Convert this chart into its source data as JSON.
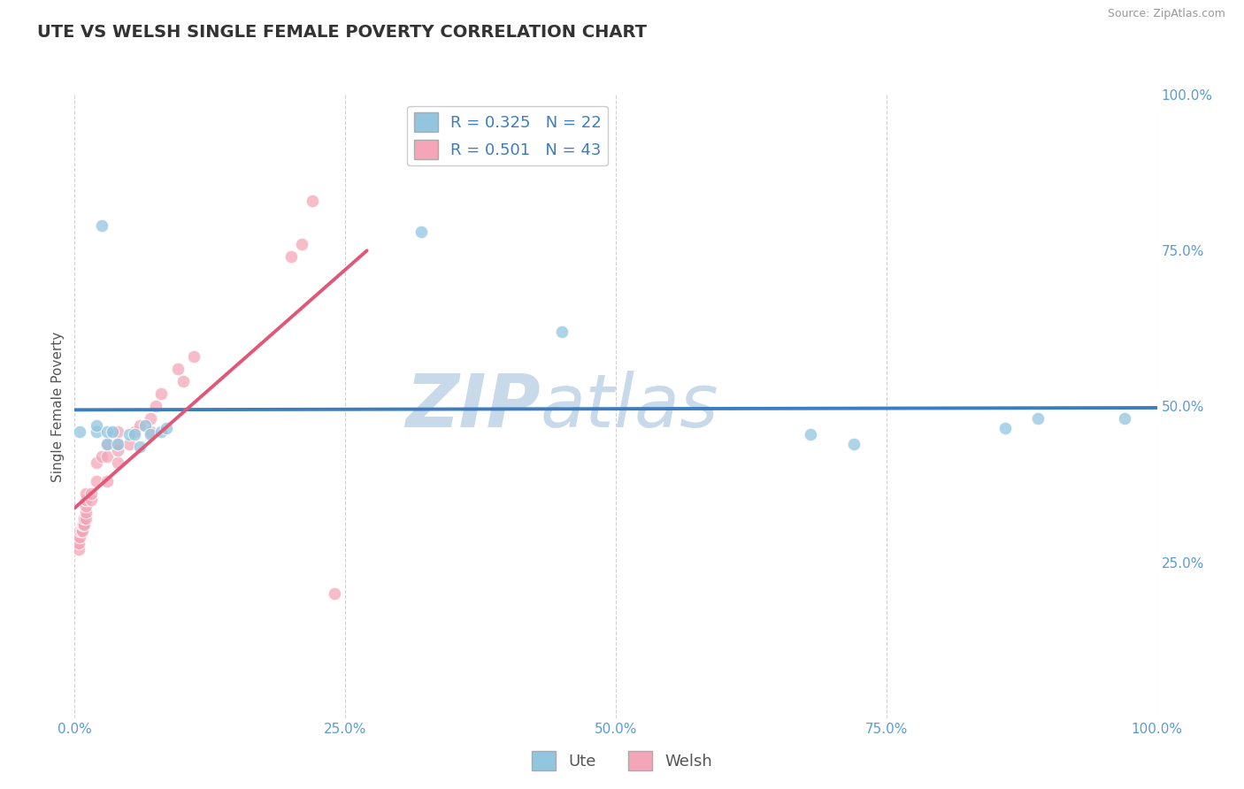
{
  "title": "UTE VS WELSH SINGLE FEMALE POVERTY CORRELATION CHART",
  "source": "Source: ZipAtlas.com",
  "ylabel": "Single Female Poverty",
  "ute_R": "R = 0.325",
  "ute_N": "N = 22",
  "welsh_R": "R = 0.501",
  "welsh_N": "N = 43",
  "ute_color": "#92c5de",
  "welsh_color": "#f4a6b8",
  "ute_line_color": "#3d7dbf",
  "welsh_line_color": "#e05878",
  "background_color": "#ffffff",
  "grid_color": "#cccccc",
  "watermark_zip": "ZIP",
  "watermark_atlas": "atlas",
  "watermark_color": "#c8daea",
  "ute_x": [
    0.005,
    0.02,
    0.02,
    0.025,
    0.03,
    0.03,
    0.035,
    0.04,
    0.05,
    0.055,
    0.06,
    0.065,
    0.07,
    0.08,
    0.085,
    0.32,
    0.45,
    0.68,
    0.72,
    0.86,
    0.89,
    0.97
  ],
  "ute_y": [
    0.46,
    0.46,
    0.47,
    0.79,
    0.44,
    0.46,
    0.46,
    0.44,
    0.455,
    0.455,
    0.435,
    0.47,
    0.455,
    0.46,
    0.465,
    0.78,
    0.62,
    0.455,
    0.44,
    0.465,
    0.48,
    0.48
  ],
  "welsh_x": [
    0.002,
    0.003,
    0.004,
    0.004,
    0.005,
    0.005,
    0.006,
    0.007,
    0.007,
    0.008,
    0.009,
    0.009,
    0.01,
    0.01,
    0.01,
    0.01,
    0.01,
    0.015,
    0.015,
    0.02,
    0.02,
    0.025,
    0.03,
    0.03,
    0.03,
    0.04,
    0.04,
    0.04,
    0.04,
    0.05,
    0.055,
    0.06,
    0.07,
    0.07,
    0.075,
    0.08,
    0.095,
    0.1,
    0.11,
    0.2,
    0.21,
    0.22,
    0.24
  ],
  "welsh_y": [
    0.28,
    0.29,
    0.27,
    0.28,
    0.29,
    0.3,
    0.3,
    0.3,
    0.31,
    0.31,
    0.31,
    0.32,
    0.32,
    0.33,
    0.34,
    0.35,
    0.36,
    0.35,
    0.36,
    0.38,
    0.41,
    0.42,
    0.38,
    0.42,
    0.44,
    0.41,
    0.43,
    0.44,
    0.46,
    0.44,
    0.46,
    0.47,
    0.46,
    0.48,
    0.5,
    0.52,
    0.56,
    0.54,
    0.58,
    0.74,
    0.76,
    0.83,
    0.2
  ],
  "xlim": [
    0.0,
    1.0
  ],
  "ylim": [
    0.0,
    1.0
  ],
  "xticks": [
    0.0,
    0.25,
    0.5,
    0.75,
    1.0
  ],
  "xticklabels": [
    "0.0%",
    "25.0%",
    "50.0%",
    "75.0%",
    "100.0%"
  ],
  "yticks_right": [
    0.25,
    0.5,
    0.75,
    1.0
  ],
  "yticklabels_right": [
    "25.0%",
    "50.0%",
    "75.0%",
    "100.0%"
  ],
  "title_fontsize": 14,
  "axis_label_fontsize": 11,
  "tick_fontsize": 11,
  "legend_fontsize": 13,
  "marker_size": 110
}
